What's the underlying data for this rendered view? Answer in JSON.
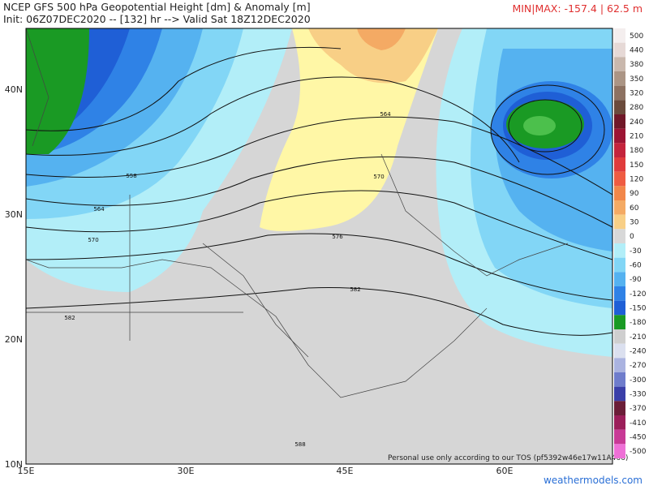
{
  "header": {
    "title": "NCEP GFS 500 hPa Geopotential Height [dm] & Anomaly [m]",
    "subtitle": "Init: 06Z07DEC2020 -- [132] hr --> Valid Sat 18Z12DEC2020",
    "minmax": "MIN|MAX: -157.4 | 62.5 m"
  },
  "axes": {
    "lat_labels": [
      "40N",
      "30N",
      "20N",
      "10N"
    ],
    "lon_labels": [
      "15E",
      "30E",
      "45E",
      "60E"
    ]
  },
  "contour_labels": [
    "558",
    "564",
    "570",
    "576",
    "582",
    "588",
    "570",
    "564",
    "582"
  ],
  "colorbar": {
    "ticks": [
      500,
      440,
      380,
      350,
      320,
      280,
      240,
      210,
      180,
      150,
      120,
      90,
      60,
      30,
      0,
      -30,
      -60,
      -90,
      -120,
      -150,
      -180,
      -210,
      -240,
      -270,
      -300,
      -330,
      -370,
      -410,
      -450,
      -500
    ],
    "colors": [
      "#f4eeee",
      "#e6d9d6",
      "#c9b8ad",
      "#ab9585",
      "#8d7262",
      "#6b4b3c",
      "#701828",
      "#9c1534",
      "#c4243c",
      "#e03c3c",
      "#ef5c42",
      "#f2874a",
      "#f4aa64",
      "#f8cf86",
      "#d8d8d8",
      "#b2eef8",
      "#82d6f6",
      "#55b2f0",
      "#2f82e6",
      "#1f5fd6",
      "#1a9a24",
      "#cfcfcf",
      "#dbe0ef",
      "#aab3e0",
      "#6f7dcc",
      "#3a3fa8",
      "#6b1e38",
      "#9b1f5a",
      "#c83a96",
      "#ee70d6"
    ]
  },
  "footer": {
    "tos": "Personal use only according to our TOS (pf5392w46e17w11A466)",
    "site": "weathermodels.com"
  }
}
